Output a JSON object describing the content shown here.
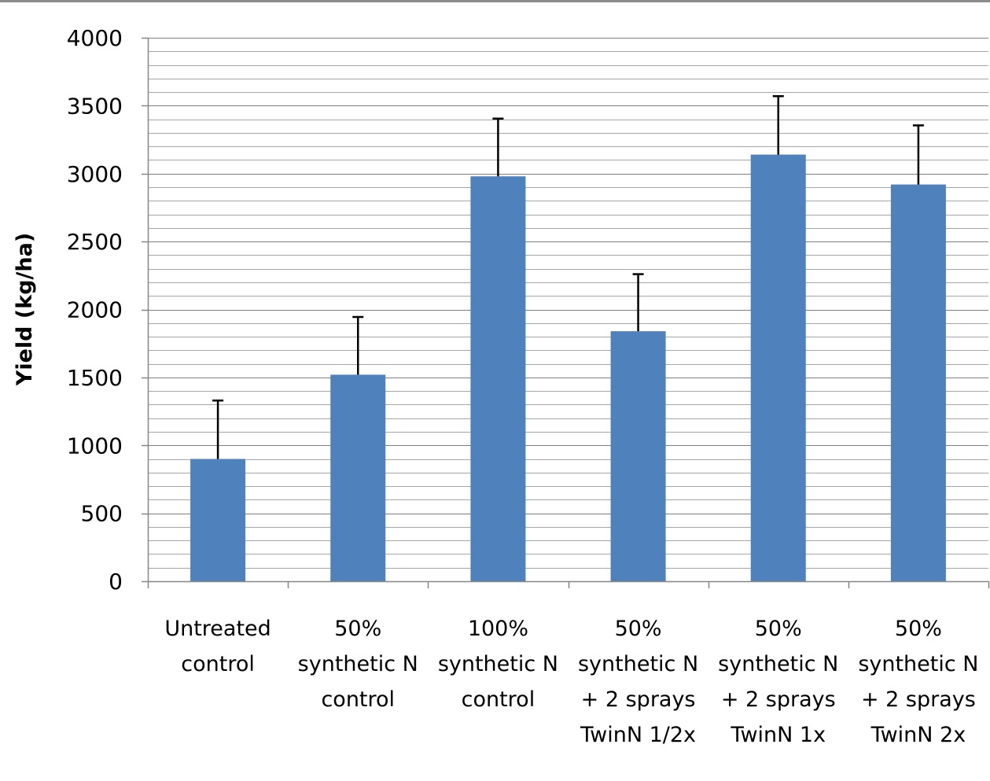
{
  "chart_data": {
    "type": "bar",
    "title": "",
    "xlabel": "",
    "ylabel": "Yield (kg/ha)",
    "ylim": [
      0,
      4000
    ],
    "yticks": [
      "0",
      "500",
      "1000",
      "1500",
      "2000",
      "2500",
      "3000",
      "3500",
      "4000"
    ],
    "minor_gridlines_step": 100,
    "grid": true,
    "legend": "none",
    "categories": [
      [
        "Untreated",
        "control"
      ],
      [
        "50%",
        "synthetic N",
        "control"
      ],
      [
        "100%",
        "synthetic N",
        "control"
      ],
      [
        "50%",
        "synthetic N",
        "+ 2 sprays",
        "TwinN 1/2x"
      ],
      [
        "50%",
        "synthetic N",
        "+ 2 sprays",
        "TwinN 1x"
      ],
      [
        "50%",
        "synthetic N",
        "+ 2 sprays",
        "TwinN 2x"
      ]
    ],
    "series": [
      {
        "values": [
          900,
          1520,
          2980,
          1840,
          3140,
          2920
        ],
        "error_upper": [
          1330,
          1945,
          3405,
          2260,
          3570,
          3355
        ],
        "color": "#4f81bd"
      }
    ]
  }
}
